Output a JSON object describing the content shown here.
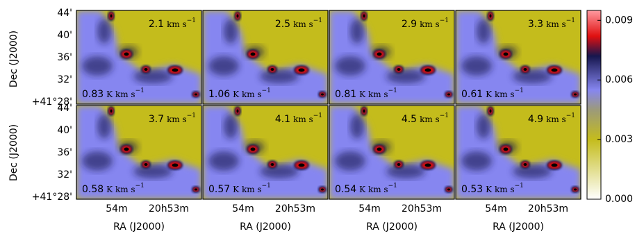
{
  "chart_data": {
    "type": "channel-maps",
    "x_label": "RA (J2000)",
    "y_label": "Dec (J2000)",
    "x_tick_labels": [
      "54m",
      "20h53m"
    ],
    "y_tick_labels": [
      "44'",
      "40'",
      "36'",
      "32'",
      "+41°28'"
    ],
    "velocity_unit": "km s",
    "intensity_unit": "K km s",
    "unit_exponent": "−1",
    "panels": [
      {
        "velocity": 2.1,
        "intensity": 0.83
      },
      {
        "velocity": 2.5,
        "intensity": 1.06
      },
      {
        "velocity": 2.9,
        "intensity": 0.81
      },
      {
        "velocity": 3.3,
        "intensity": 0.61
      },
      {
        "velocity": 3.7,
        "intensity": 0.58
      },
      {
        "velocity": 4.1,
        "intensity": 0.57
      },
      {
        "velocity": 4.5,
        "intensity": 0.54
      },
      {
        "velocity": 4.9,
        "intensity": 0.53
      }
    ],
    "colorbar": {
      "ylim": [
        0,
        0.0095
      ],
      "yticks": [
        {
          "value": 0,
          "label": "0.000"
        },
        {
          "value": 0.003,
          "label": "0.003"
        },
        {
          "value": 0.006,
          "label": "0.006"
        },
        {
          "value": 0.009,
          "label": "0.009"
        }
      ],
      "colormap": [
        {
          "value": 0,
          "color": "#ffffff"
        },
        {
          "value": 0.003,
          "color": "#c4bc1c"
        },
        {
          "value": 0.0045,
          "color": "#9c9a7a"
        },
        {
          "value": 0.0055,
          "color": "#8686f0"
        },
        {
          "value": 0.0072,
          "color": "#16164e"
        },
        {
          "value": 0.0082,
          "color": "#e01010"
        },
        {
          "value": 0.0095,
          "color": "#ff9aa0"
        }
      ]
    }
  }
}
